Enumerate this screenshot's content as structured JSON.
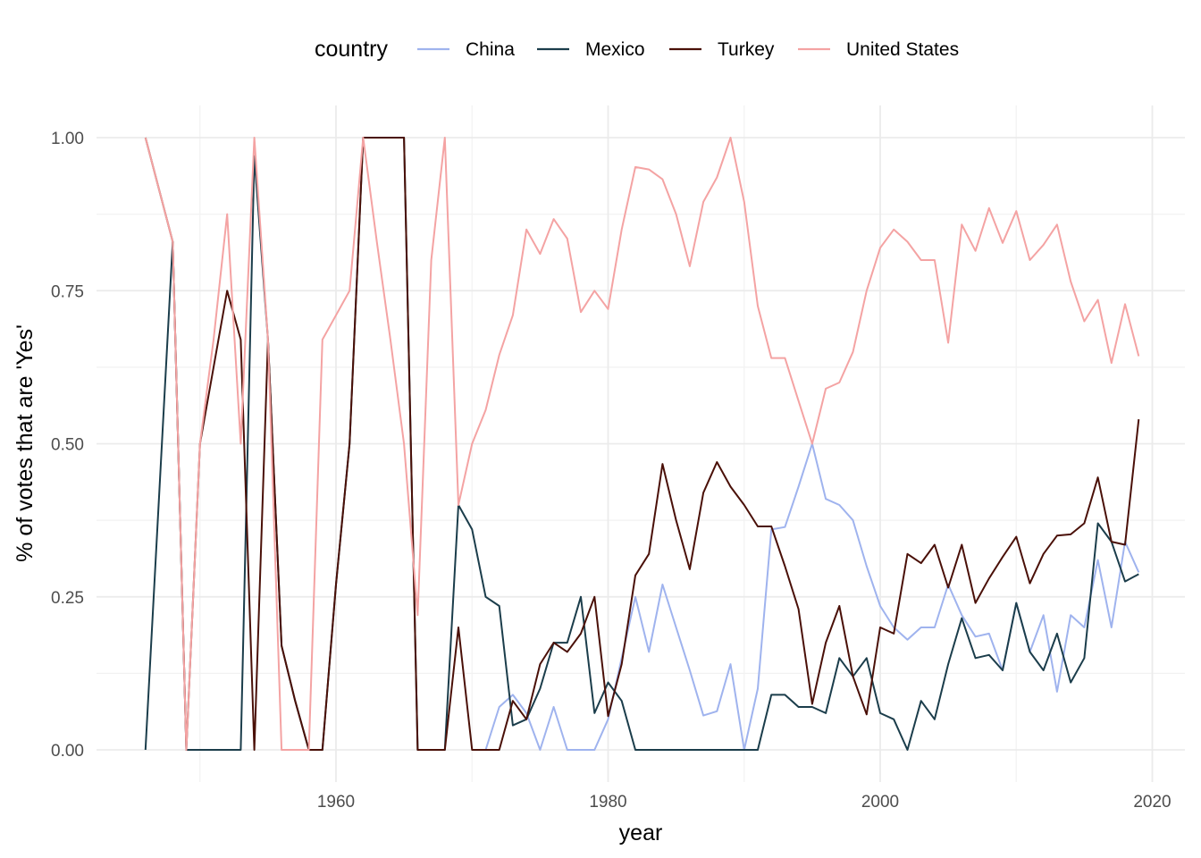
{
  "chart_data": {
    "type": "line",
    "title": "",
    "xlabel": "year",
    "ylabel": "% of votes that are 'Yes'",
    "xlim": [
      1946,
      2019
    ],
    "ylim": [
      0,
      1
    ],
    "x_ticks": [
      1960,
      1980,
      2000,
      2020
    ],
    "x_tick_labels": [
      "1960",
      "1980",
      "2000",
      "2020"
    ],
    "y_ticks": [
      0,
      0.25,
      0.5,
      0.75,
      1
    ],
    "y_tick_labels": [
      "0.00",
      "0.25",
      "0.50",
      "0.75",
      "1.00"
    ],
    "grid": true,
    "legend": {
      "title": "country",
      "position": "top"
    },
    "series": [
      {
        "name": "China",
        "color": "#9fb3ee",
        "x": [
          1971,
          1972,
          1973,
          1974,
          1975,
          1976,
          1977,
          1978,
          1979,
          1980,
          1981,
          1982,
          1983,
          1984,
          1985,
          1986,
          1987,
          1988,
          1989,
          1990,
          1991,
          1992,
          1993,
          1994,
          1995,
          1996,
          1997,
          1998,
          1999,
          2000,
          2001,
          2002,
          2003,
          2004,
          2005,
          2006,
          2007,
          2008,
          2009,
          2010,
          2011,
          2012,
          2013,
          2014,
          2015,
          2016,
          2017,
          2018,
          2019
        ],
        "y": [
          0,
          0.07,
          0.09,
          0.06,
          0,
          0.07,
          0,
          0,
          0,
          0.05,
          0.15,
          0.25,
          0.16,
          0.27,
          0.2,
          0.13,
          0.056,
          0.063,
          0.14,
          0,
          0.1,
          0.36,
          0.364,
          0.43,
          0.5,
          0.41,
          0.4,
          0.375,
          0.3,
          0.235,
          0.2,
          0.18,
          0.2,
          0.2,
          0.27,
          0.22,
          0.185,
          0.19,
          0.13,
          0.24,
          0.16,
          0.22,
          0.095,
          0.22,
          0.2,
          0.31,
          0.2,
          0.34,
          0.29
        ]
      },
      {
        "name": "Mexico",
        "color": "#1b3d4b",
        "x": [
          1946,
          1948,
          1949,
          1950,
          1951,
          1952,
          1953,
          1954,
          1955,
          1956,
          1957,
          1958,
          1959,
          1960,
          1961,
          1962,
          1963,
          1964,
          1965,
          1966,
          1967,
          1968,
          1969,
          1970,
          1971,
          1972,
          1973,
          1974,
          1975,
          1976,
          1977,
          1978,
          1979,
          1980,
          1981,
          1982,
          1983,
          1984,
          1985,
          1986,
          1987,
          1988,
          1989,
          1990,
          1991,
          1992,
          1993,
          1994,
          1995,
          1996,
          1997,
          1998,
          1999,
          2000,
          2001,
          2002,
          2003,
          2004,
          2005,
          2006,
          2007,
          2008,
          2009,
          2010,
          2011,
          2012,
          2013,
          2014,
          2015,
          2016,
          2017,
          2018,
          2019
        ],
        "y": [
          0,
          0.83,
          0,
          0,
          0,
          0,
          0,
          0.97,
          0.67,
          0.17,
          0.08,
          0,
          0,
          0.27,
          0.5,
          1,
          1,
          1,
          1,
          0,
          0,
          0,
          0.4,
          0.36,
          0.25,
          0.235,
          0.04,
          0.05,
          0.1,
          0.175,
          0.175,
          0.25,
          0.06,
          0.11,
          0.08,
          0,
          0,
          0,
          0,
          0,
          0,
          0,
          0,
          0,
          0,
          0.09,
          0.09,
          0.07,
          0.07,
          0.06,
          0.15,
          0.12,
          0.15,
          0.06,
          0.05,
          0,
          0.08,
          0.05,
          0.14,
          0.215,
          0.15,
          0.155,
          0.13,
          0.24,
          0.16,
          0.13,
          0.19,
          0.11,
          0.15,
          0.37,
          0.34,
          0.275,
          0.287
        ]
      },
      {
        "name": "Turkey",
        "color": "#4a1008",
        "x": [
          1946,
          1948,
          1949,
          1950,
          1951,
          1952,
          1953,
          1954,
          1955,
          1956,
          1957,
          1958,
          1959,
          1960,
          1961,
          1962,
          1963,
          1964,
          1965,
          1966,
          1967,
          1968,
          1969,
          1970,
          1971,
          1972,
          1973,
          1974,
          1975,
          1976,
          1977,
          1978,
          1979,
          1980,
          1981,
          1982,
          1983,
          1984,
          1985,
          1986,
          1987,
          1988,
          1989,
          1990,
          1991,
          1992,
          1993,
          1994,
          1995,
          1996,
          1997,
          1998,
          1999,
          2000,
          2001,
          2002,
          2003,
          2004,
          2005,
          2006,
          2007,
          2008,
          2009,
          2010,
          2011,
          2012,
          2013,
          2014,
          2015,
          2016,
          2017,
          2018,
          2019
        ],
        "y": [
          1,
          0.83,
          0,
          0.5,
          0.625,
          0.75,
          0.67,
          0,
          0.67,
          0.17,
          0.08,
          0,
          0,
          0.27,
          0.5,
          1,
          1,
          1,
          1,
          0,
          0,
          0,
          0.2,
          0,
          0,
          0,
          0.08,
          0.05,
          0.14,
          0.175,
          0.16,
          0.19,
          0.25,
          0.055,
          0.14,
          0.285,
          0.32,
          0.467,
          0.375,
          0.295,
          0.42,
          0.47,
          0.43,
          0.4,
          0.365,
          0.365,
          0.3,
          0.23,
          0.075,
          0.175,
          0.235,
          0.12,
          0.058,
          0.2,
          0.19,
          0.32,
          0.305,
          0.335,
          0.265,
          0.335,
          0.24,
          0.28,
          0.315,
          0.348,
          0.272,
          0.32,
          0.35,
          0.352,
          0.37,
          0.445,
          0.34,
          0.335,
          0.54
        ]
      },
      {
        "name": "United States",
        "color": "#f4a3a3",
        "x": [
          1946,
          1948,
          1949,
          1950,
          1951,
          1952,
          1953,
          1954,
          1955,
          1956,
          1957,
          1958,
          1959,
          1960,
          1961,
          1962,
          1963,
          1964,
          1965,
          1966,
          1967,
          1968,
          1969,
          1970,
          1971,
          1972,
          1973,
          1974,
          1975,
          1976,
          1977,
          1978,
          1979,
          1980,
          1981,
          1982,
          1983,
          1984,
          1985,
          1986,
          1987,
          1988,
          1989,
          1990,
          1991,
          1992,
          1993,
          1994,
          1995,
          1996,
          1997,
          1998,
          1999,
          2000,
          2001,
          2002,
          2003,
          2004,
          2005,
          2006,
          2007,
          2008,
          2009,
          2010,
          2011,
          2012,
          2013,
          2014,
          2015,
          2016,
          2017,
          2018,
          2019
        ],
        "y": [
          1,
          0.83,
          0,
          0.5,
          0.67,
          0.875,
          0.5,
          1,
          0.67,
          0,
          0,
          0,
          0.67,
          0.71,
          0.75,
          1,
          0.83,
          0.67,
          0.5,
          0.22,
          0.8,
          1,
          0.4,
          0.5,
          0.555,
          0.645,
          0.71,
          0.85,
          0.81,
          0.867,
          0.835,
          0.715,
          0.75,
          0.72,
          0.85,
          0.952,
          0.948,
          0.932,
          0.875,
          0.79,
          0.895,
          0.935,
          1,
          0.895,
          0.725,
          0.64,
          0.64,
          0.57,
          0.5,
          0.59,
          0.6,
          0.65,
          0.75,
          0.82,
          0.85,
          0.83,
          0.8,
          0.8,
          0.665,
          0.858,
          0.815,
          0.885,
          0.828,
          0.88,
          0.8,
          0.825,
          0.858,
          0.765,
          0.7,
          0.735,
          0.632,
          0.728,
          0.643
        ]
      }
    ]
  }
}
